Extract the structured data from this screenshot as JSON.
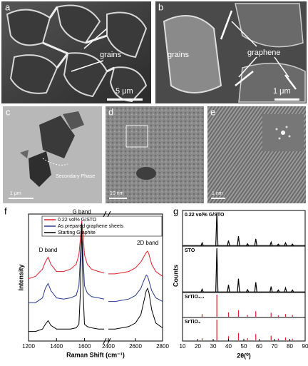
{
  "panels": {
    "a": {
      "letter": "a",
      "label": "grains",
      "scale": "5 μm"
    },
    "b": {
      "letter": "b",
      "label_grains": "grains",
      "label_graphene": "graphene",
      "scale": "1 μm"
    },
    "c": {
      "letter": "c",
      "label": "Secondary Phase",
      "scale": "1 μm"
    },
    "d": {
      "letter": "d",
      "scale": "10 nm"
    },
    "e": {
      "letter": "e",
      "scale": "1 nm"
    }
  },
  "chart_data": [
    {
      "type": "line",
      "letter": "f",
      "xlabel": "Raman Shift (cm⁻¹)",
      "ylabel": "Intensity",
      "xlim": [
        1200,
        2800
      ],
      "xbreak": [
        1750,
        2400
      ],
      "xticks": [
        1200,
        1400,
        1600,
        2400,
        2600,
        2800
      ],
      "ylim": [
        0,
        100
      ],
      "annotations": [
        "D band",
        "G band",
        "2D band"
      ],
      "x": [
        1200,
        1250,
        1300,
        1320,
        1340,
        1360,
        1400,
        1450,
        1500,
        1540,
        1560,
        1570,
        1580,
        1590,
        1600,
        1620,
        1650,
        1700,
        1740,
        2000,
        2400,
        2450,
        2500,
        2550,
        2600,
        2640,
        2660,
        2680,
        2690,
        2700,
        2720,
        2750,
        2800
      ],
      "series": [
        {
          "name": "0.22 vol% G/STO",
          "color": "#e0202a",
          "values": [
            52,
            54,
            60,
            66,
            70,
            64,
            58,
            58,
            60,
            64,
            72,
            85,
            100,
            88,
            72,
            64,
            60,
            58,
            57,
            null,
            56,
            56,
            57,
            58,
            61,
            66,
            70,
            74,
            75,
            72,
            64,
            58,
            54
          ]
        },
        {
          "name": "As prepared graphene sheets",
          "color": "#2a3a8c",
          "values": [
            32,
            32,
            36,
            44,
            48,
            42,
            36,
            35,
            36,
            38,
            46,
            70,
            92,
            70,
            46,
            40,
            37,
            36,
            35,
            null,
            33,
            33,
            34,
            35,
            38,
            44,
            50,
            55,
            54,
            50,
            42,
            36,
            33
          ]
        },
        {
          "name": "Starting Graphite",
          "color": "#000000",
          "values": [
            8,
            8,
            10,
            14,
            17,
            13,
            10,
            10,
            10,
            11,
            14,
            40,
            98,
            40,
            14,
            12,
            11,
            10,
            10,
            null,
            10,
            10,
            11,
            12,
            15,
            22,
            32,
            42,
            44,
            40,
            26,
            15,
            11
          ]
        }
      ]
    },
    {
      "type": "stick",
      "letter": "g",
      "xlabel": "2θ(⁰)",
      "ylabel": "Counts",
      "xlim": [
        10,
        90
      ],
      "xticks": [
        10,
        20,
        30,
        40,
        50,
        60,
        70,
        80,
        90
      ],
      "ylim": [
        0,
        100
      ],
      "series": [
        {
          "name": "0.22 vol% G/STO",
          "color": "#000000",
          "x": [
            22.8,
            32.4,
            40,
            46.5,
            52.4,
            57.8,
            67.8,
            72.5,
            77.2,
            81.7
          ],
          "values": [
            8,
            100,
            15,
            28,
            5,
            20,
            10,
            4,
            8,
            4
          ]
        },
        {
          "name": "STO",
          "color": "#000000",
          "x": [
            22.8,
            32.4,
            40,
            46.5,
            52.4,
            57.8,
            67.8,
            72.5,
            77.2,
            81.7
          ],
          "values": [
            6,
            100,
            16,
            30,
            5,
            22,
            12,
            4,
            9,
            4
          ]
        },
        {
          "name": "SrTiO₃.₄",
          "color": "#e0202a",
          "x": [
            22.8,
            32.4,
            40,
            46.5,
            52.4,
            57.8,
            67.8,
            72.5,
            77.2,
            81.7
          ],
          "values": [
            12,
            100,
            20,
            30,
            8,
            25,
            18,
            6,
            12,
            8
          ]
        },
        {
          "name": "SrTiO₃",
          "color": "#e0202a",
          "x": [
            22.8,
            32.4,
            40,
            46.5,
            52.4,
            57.8,
            67.8,
            72.5,
            77.2,
            81.7
          ],
          "values": [
            10,
            100,
            20,
            35,
            10,
            30,
            22,
            8,
            14,
            8
          ]
        }
      ]
    }
  ]
}
